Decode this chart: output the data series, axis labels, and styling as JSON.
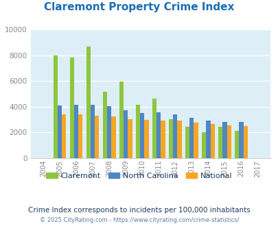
{
  "title": "Claremont Property Crime Index",
  "years": [
    "2004",
    "2005",
    "2006",
    "2007",
    "2008",
    "2009",
    "2010",
    "2011",
    "2012",
    "2013",
    "2014",
    "2015",
    "2016",
    "2017"
  ],
  "claremont": [
    0,
    8000,
    7800,
    8650,
    5150,
    5950,
    4150,
    4650,
    3050,
    2450,
    2020,
    2450,
    2100,
    0
  ],
  "north_carolina": [
    0,
    4100,
    4150,
    4150,
    4050,
    3700,
    3500,
    3550,
    3380,
    3150,
    2920,
    2800,
    2800,
    0
  ],
  "national": [
    0,
    3400,
    3380,
    3300,
    3250,
    3050,
    3000,
    2900,
    2950,
    2750,
    2650,
    2550,
    2480,
    0
  ],
  "claremont_color": "#8dc63f",
  "nc_color": "#4f86c6",
  "national_color": "#f5a623",
  "bg_color": "#ddeef6",
  "ylim": [
    0,
    10000
  ],
  "yticks": [
    0,
    2000,
    4000,
    6000,
    8000,
    10000
  ],
  "subtitle": "Crime Index corresponds to incidents per 100,000 inhabitants",
  "footer": "© 2025 CityRating.com - https://www.cityrating.com/crime-statistics/",
  "title_color": "#1a6db5",
  "subtitle_color": "#1a3a5c",
  "footer_color": "#5b7fa6"
}
